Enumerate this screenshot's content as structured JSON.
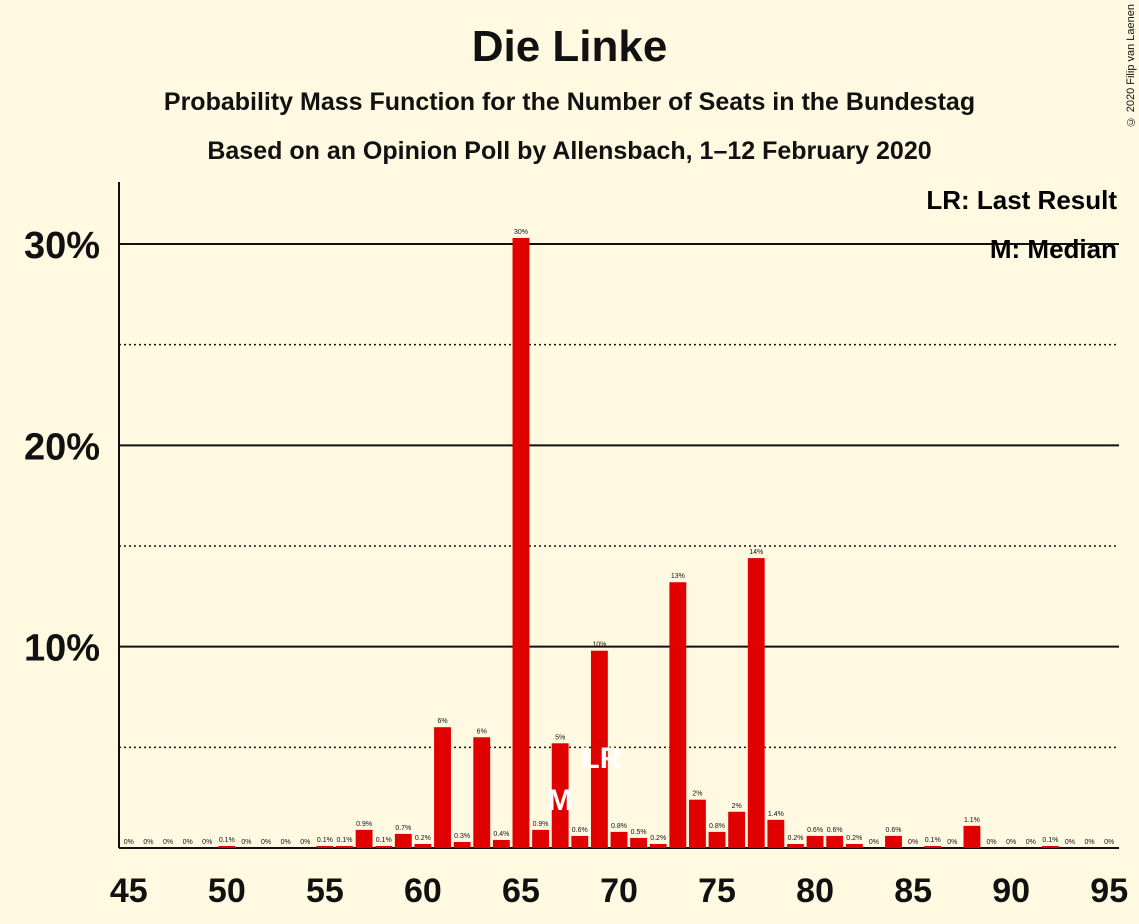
{
  "title": "Die Linke",
  "subtitle": "Probability Mass Function for the Number of Seats in the Bundestag",
  "subtitle2": "Based on an Opinion Poll by Allensbach, 1–12 February 2020",
  "copyright": "© 2020 Filip van Laenen",
  "legend": {
    "lr": "LR: Last Result",
    "median": "M: Median"
  },
  "colors": {
    "bar": "#E00000",
    "background": "#FFF9E1",
    "grid": "#111111"
  },
  "chart_data": {
    "type": "bar",
    "x": [
      45,
      46,
      47,
      48,
      49,
      50,
      51,
      52,
      53,
      54,
      55,
      56,
      57,
      58,
      59,
      60,
      61,
      62,
      63,
      64,
      65,
      66,
      67,
      68,
      69,
      70,
      71,
      72,
      73,
      74,
      75,
      76,
      77,
      78,
      79,
      80,
      81,
      82,
      83,
      84,
      85,
      86,
      87,
      88,
      89,
      90,
      91,
      92,
      93,
      94,
      95
    ],
    "values": [
      0,
      0,
      0,
      0,
      0,
      0.1,
      0,
      0,
      0,
      0,
      0.1,
      0.1,
      0.9,
      0.1,
      0.7,
      0.2,
      6,
      0.3,
      5.5,
      0.4,
      30.3,
      0.9,
      5.2,
      0.6,
      9.8,
      0.8,
      0.5,
      0.2,
      13.2,
      2.4,
      0.8,
      1.8,
      14.4,
      1.4,
      0.2,
      0.6,
      0.6,
      0.2,
      0,
      0.6,
      0,
      0.1,
      0,
      1.1,
      0,
      0,
      0,
      0.1,
      0,
      0,
      0
    ],
    "labels": [
      "0%",
      "0%",
      "0%",
      "0%",
      "0%",
      "0.1%",
      "0%",
      "0%",
      "0%",
      "0%",
      "0.1%",
      "0.1%",
      "0.9%",
      "0.1%",
      "0.7%",
      "0.2%",
      "6%",
      "0.3%",
      "6%",
      "0.4%",
      "30%",
      "0.9%",
      "5%",
      "0.6%",
      "10%",
      "0.8%",
      "0.5%",
      "0.2%",
      "13%",
      "2%",
      "0.8%",
      "2%",
      "14%",
      "1.4%",
      "0.2%",
      "0.6%",
      "0.6%",
      "0.2%",
      "0%",
      "0.6%",
      "0%",
      "0.1%",
      "0%",
      "1.1%",
      "0%",
      "0%",
      "0%",
      "0.1%",
      "0%",
      "0%",
      "0%"
    ],
    "xticks": [
      45,
      50,
      55,
      60,
      65,
      70,
      75,
      80,
      85,
      90,
      95
    ],
    "yticks": [
      10,
      20,
      30
    ],
    "ytick_labels": [
      "10%",
      "20%",
      "30%"
    ],
    "dotted_lines": [
      5,
      15,
      25
    ],
    "ylim": [
      0,
      33
    ],
    "median": 67,
    "median_marker": "M",
    "last_result": 69,
    "last_result_marker": "LR"
  }
}
